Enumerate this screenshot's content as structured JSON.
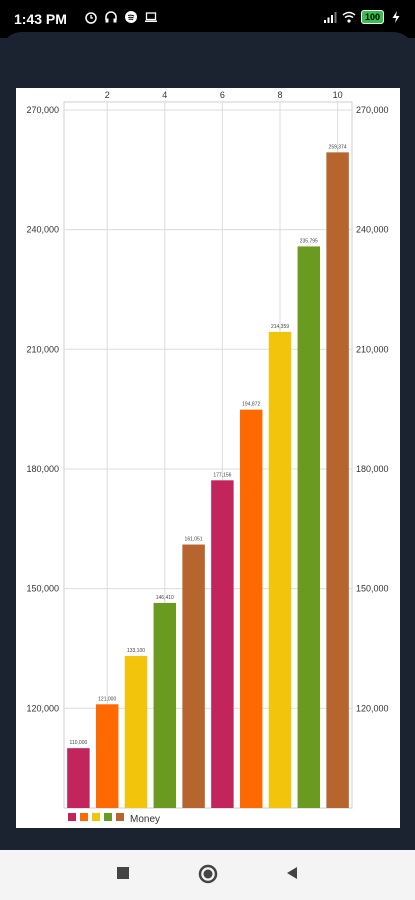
{
  "status_bar": {
    "time": "1:43 PM",
    "battery": "100"
  },
  "chart_data": {
    "type": "bar",
    "x": [
      1,
      2,
      3,
      4,
      5,
      6,
      7,
      8,
      9,
      10
    ],
    "values": [
      110000,
      121000,
      133100,
      146410,
      161051,
      177156,
      194872,
      214359,
      235795,
      259374
    ],
    "value_labels": [
      "110,000",
      "121,000",
      "133,100",
      "146,410",
      "161,051",
      "177,156",
      "194,872",
      "214,359",
      "235,795",
      "259,374"
    ],
    "colors": [
      "#c2255c",
      "#ff6a00",
      "#f2c40c",
      "#6a9a1f",
      "#b5652d",
      "#c2255c",
      "#ff6a00",
      "#f2c40c",
      "#6a9a1f",
      "#b5652d"
    ],
    "x_ticks": [
      "2",
      "4",
      "6",
      "8",
      "10"
    ],
    "x_tick_values": [
      2,
      4,
      6,
      8,
      10
    ],
    "y_ticks": [
      "120,000",
      "150,000",
      "180,000",
      "210,000",
      "240,000",
      "270,000"
    ],
    "y_tick_values": [
      120000,
      150000,
      180000,
      210000,
      240000,
      270000
    ],
    "ylim": [
      95000,
      272000
    ],
    "legend": {
      "swatch_colors": [
        "#c2255c",
        "#ff6a00",
        "#f2c40c",
        "#6a9a1f",
        "#b5652d"
      ],
      "label": "Money"
    },
    "grid": true,
    "legend_position": "bottom-left"
  },
  "nav": {
    "recents": "square-icon",
    "home": "circle-icon",
    "back": "triangle-back-icon"
  }
}
